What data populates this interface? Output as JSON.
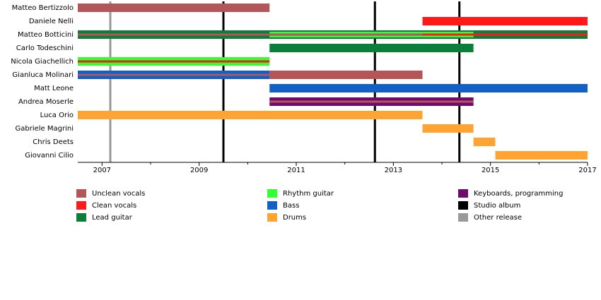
{
  "chart_data": {
    "type": "timeline",
    "members": [
      "Matteo Bertizzolo",
      "Daniele Nelli",
      "Matteo Botticini",
      "Carlo Todeschini",
      "Nicola Giachellich",
      "Gianluca Molinari",
      "Matt Leone",
      "Andrea Moserle",
      "Luca Orio",
      "Gabriele Magrini",
      "Chris Deets",
      "Giovanni Cilio"
    ],
    "xlim": [
      2006.5,
      2017
    ],
    "xticks": [
      2007,
      2009,
      2011,
      2013,
      2015,
      2017
    ],
    "xminor": [
      2008,
      2010,
      2012,
      2014,
      2016
    ],
    "series": [
      {
        "name": "Unclean vocals",
        "color": "#b4555a",
        "bars": [
          {
            "member": 0,
            "start": 2006.5,
            "end": 2010.45,
            "style": "bar"
          },
          {
            "member": 5,
            "start": 2010.45,
            "end": 2013.6,
            "style": "bar"
          },
          {
            "member": 2,
            "start": 2006.5,
            "end": 2013.6,
            "style": "stripe"
          },
          {
            "member": 5,
            "start": 2006.5,
            "end": 2010.45,
            "style": "stripe"
          },
          {
            "member": 7,
            "start": 2010.45,
            "end": 2014.65,
            "style": "stripe"
          }
        ]
      },
      {
        "name": "Clean vocals",
        "color": "#ff1a1a",
        "bars": [
          {
            "member": 1,
            "start": 2013.6,
            "end": 2017,
            "style": "bar"
          },
          {
            "member": 2,
            "start": 2013.6,
            "end": 2017,
            "style": "stripe"
          },
          {
            "member": 4,
            "start": 2006.5,
            "end": 2010.45,
            "style": "stripe"
          }
        ]
      },
      {
        "name": "Lead guitar",
        "color": "#0a7f3a",
        "bars": [
          {
            "member": 2,
            "start": 2006.5,
            "end": 2017,
            "style": "bar"
          },
          {
            "member": 3,
            "start": 2010.45,
            "end": 2014.65,
            "style": "bar"
          }
        ]
      },
      {
        "name": "Rhythm guitar",
        "color": "#33ff33",
        "bars": [
          {
            "member": 4,
            "start": 2006.5,
            "end": 2010.45,
            "style": "bar"
          },
          {
            "member": 2,
            "start": 2010.45,
            "end": 2014.65,
            "style": "mid"
          }
        ]
      },
      {
        "name": "Bass",
        "color": "#1060c8",
        "bars": [
          {
            "member": 5,
            "start": 2006.5,
            "end": 2010.45,
            "style": "bar"
          },
          {
            "member": 6,
            "start": 2010.45,
            "end": 2017,
            "style": "bar"
          }
        ]
      },
      {
        "name": "Drums",
        "color": "#ffa333",
        "bars": [
          {
            "member": 8,
            "start": 2006.5,
            "end": 2013.6,
            "style": "bar"
          },
          {
            "member": 9,
            "start": 2013.6,
            "end": 2014.65,
            "style": "bar"
          },
          {
            "member": 10,
            "start": 2014.65,
            "end": 2015.1,
            "style": "bar"
          },
          {
            "member": 11,
            "start": 2015.1,
            "end": 2017,
            "style": "bar"
          }
        ]
      },
      {
        "name": "Keyboards, programming",
        "color": "#6e0a6e",
        "bars": [
          {
            "member": 7,
            "start": 2010.45,
            "end": 2014.65,
            "style": "bar"
          }
        ]
      }
    ],
    "releases": [
      {
        "name": "Studio album",
        "color": "#000000",
        "dates": [
          2009.5,
          2012.62,
          2014.36
        ]
      },
      {
        "name": "Other release",
        "color": "#999999",
        "dates": [
          2007.17
        ]
      }
    ]
  }
}
